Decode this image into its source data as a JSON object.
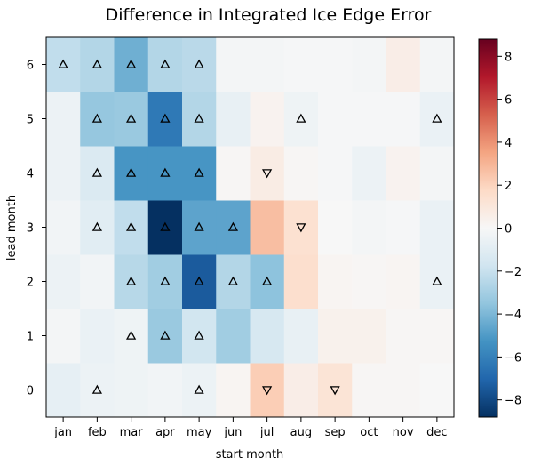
{
  "chart_data": {
    "type": "heatmap",
    "title": "Difference in Integrated Ice Edge Error",
    "xlabel": "start month",
    "ylabel": "lead month",
    "x_categories": [
      "jan",
      "feb",
      "mar",
      "apr",
      "may",
      "jun",
      "jul",
      "aug",
      "sep",
      "oct",
      "nov",
      "dec"
    ],
    "y_categories": [
      "0",
      "1",
      "2",
      "3",
      "4",
      "5",
      "6"
    ],
    "values": {
      "0": [
        -0.8,
        -0.5,
        -0.4,
        -0.3,
        -0.5,
        0.2,
        2.2,
        0.6,
        1.2,
        0.1,
        0.1,
        0.0
      ],
      "1": [
        -0.2,
        -0.6,
        -0.4,
        -3.3,
        -1.7,
        -3.1,
        -1.5,
        -0.7,
        0.4,
        0.4,
        0.1,
        0.1
      ],
      "2": [
        -0.5,
        -0.3,
        -2.5,
        -3.1,
        -7.4,
        -2.6,
        -3.6,
        1.5,
        0.2,
        0.1,
        0.2,
        -0.6
      ],
      "3": [
        -0.3,
        -1.0,
        -2.2,
        -8.9,
        -4.7,
        -4.7,
        2.7,
        1.4,
        0.0,
        -0.2,
        -0.1,
        -0.6
      ],
      "4": [
        -0.5,
        -1.3,
        -5.2,
        -5.2,
        -5.2,
        0.1,
        0.7,
        0.1,
        -0.1,
        -0.5,
        0.3,
        -0.2
      ],
      "5": [
        -0.5,
        -3.4,
        -3.3,
        -6.3,
        -2.6,
        -0.7,
        0.3,
        -0.4,
        -0.1,
        -0.1,
        -0.1,
        -0.6
      ],
      "6": [
        -2.2,
        -2.6,
        -4.3,
        -2.6,
        -2.4,
        -0.2,
        -0.2,
        -0.1,
        -0.1,
        -0.2,
        0.6,
        -0.2
      ]
    },
    "markers": [
      {
        "x": "jan",
        "y": "6",
        "dir": "up"
      },
      {
        "x": "feb",
        "y": "6",
        "dir": "up"
      },
      {
        "x": "mar",
        "y": "6",
        "dir": "up"
      },
      {
        "x": "apr",
        "y": "6",
        "dir": "up"
      },
      {
        "x": "may",
        "y": "6",
        "dir": "up"
      },
      {
        "x": "feb",
        "y": "5",
        "dir": "up"
      },
      {
        "x": "mar",
        "y": "5",
        "dir": "up"
      },
      {
        "x": "apr",
        "y": "5",
        "dir": "up"
      },
      {
        "x": "may",
        "y": "5",
        "dir": "up"
      },
      {
        "x": "aug",
        "y": "5",
        "dir": "up"
      },
      {
        "x": "dec",
        "y": "5",
        "dir": "up"
      },
      {
        "x": "feb",
        "y": "4",
        "dir": "up"
      },
      {
        "x": "mar",
        "y": "4",
        "dir": "up"
      },
      {
        "x": "apr",
        "y": "4",
        "dir": "up"
      },
      {
        "x": "may",
        "y": "4",
        "dir": "up"
      },
      {
        "x": "jul",
        "y": "4",
        "dir": "down"
      },
      {
        "x": "feb",
        "y": "3",
        "dir": "up"
      },
      {
        "x": "mar",
        "y": "3",
        "dir": "up"
      },
      {
        "x": "apr",
        "y": "3",
        "dir": "up"
      },
      {
        "x": "may",
        "y": "3",
        "dir": "up"
      },
      {
        "x": "jun",
        "y": "3",
        "dir": "up"
      },
      {
        "x": "aug",
        "y": "3",
        "dir": "down"
      },
      {
        "x": "mar",
        "y": "2",
        "dir": "up"
      },
      {
        "x": "apr",
        "y": "2",
        "dir": "up"
      },
      {
        "x": "may",
        "y": "2",
        "dir": "up"
      },
      {
        "x": "jun",
        "y": "2",
        "dir": "up"
      },
      {
        "x": "jul",
        "y": "2",
        "dir": "up"
      },
      {
        "x": "dec",
        "y": "2",
        "dir": "up"
      },
      {
        "x": "mar",
        "y": "1",
        "dir": "up"
      },
      {
        "x": "apr",
        "y": "1",
        "dir": "up"
      },
      {
        "x": "may",
        "y": "1",
        "dir": "up"
      },
      {
        "x": "feb",
        "y": "0",
        "dir": "up"
      },
      {
        "x": "may",
        "y": "0",
        "dir": "up"
      },
      {
        "x": "jul",
        "y": "0",
        "dir": "down"
      },
      {
        "x": "sep",
        "y": "0",
        "dir": "down"
      }
    ],
    "colorbar": {
      "colormap": "RdBu_r",
      "range": [
        -8.8,
        8.8
      ],
      "ticks": [
        -8,
        -6,
        -4,
        -2,
        0,
        2,
        4,
        6,
        8
      ]
    },
    "grid": false
  }
}
